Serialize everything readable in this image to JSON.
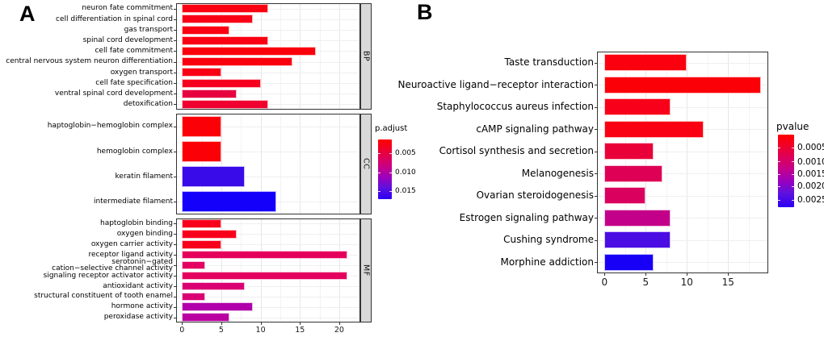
{
  "figure": {
    "panel_a_letter": "A",
    "panel_b_letter": "B"
  },
  "chart_data": [
    {
      "type": "bar",
      "orientation": "horizontal",
      "panel": "A",
      "fill_by": "p.adjust",
      "x_ticks": [
        0,
        5,
        10,
        15,
        20
      ],
      "xlim": [
        0,
        22.5
      ],
      "legend": {
        "title": "p.adjust",
        "tick_labels": [
          "0.005",
          "0.010",
          "0.015"
        ],
        "gradient_top": "#FF0000",
        "gradient_bottom": "#2B00F3"
      },
      "facets": [
        {
          "name": "BP",
          "rows": [
            {
              "label": "neuron fate commitment",
              "value": 11,
              "color": "#FA0010"
            },
            {
              "label": "cell differentiation in spinal cord",
              "value": 9,
              "color": "#F90017"
            },
            {
              "label": "gas transport",
              "value": 6,
              "color": "#FA0012"
            },
            {
              "label": "spinal cord development",
              "value": 11,
              "color": "#FA0012"
            },
            {
              "label": "cell fate commitment",
              "value": 17,
              "color": "#FB000C"
            },
            {
              "label": "central nervous system neuron differentiation",
              "value": 14,
              "color": "#FA000F"
            },
            {
              "label": "oxygen transport",
              "value": 5,
              "color": "#F90015"
            },
            {
              "label": "cell fate specification",
              "value": 10,
              "color": "#F7001F"
            },
            {
              "label": "ventral spinal cord development",
              "value": 7,
              "color": "#E60040"
            },
            {
              "label": "detoxification",
              "value": 11,
              "color": "#EF002E"
            }
          ]
        },
        {
          "name": "CC",
          "rows": [
            {
              "label": "haptoglobin−hemoglobin complex",
              "value": 5,
              "color": "#FC0007"
            },
            {
              "label": "hemoglobin complex",
              "value": 5,
              "color": "#FC0007"
            },
            {
              "label": "keratin filament",
              "value": 8,
              "color": "#3A0BE9"
            },
            {
              "label": "intermediate filament",
              "value": 12,
              "color": "#1400FA"
            }
          ]
        },
        {
          "name": "MF",
          "rows": [
            {
              "label": "haptoglobin binding",
              "value": 5,
              "color": "#F8001B"
            },
            {
              "label": "oxygen binding",
              "value": 7,
              "color": "#F8001B"
            },
            {
              "label": "oxygen carrier activity",
              "value": 5,
              "color": "#F8001B"
            },
            {
              "label": "receptor ligand activity",
              "value": 21,
              "color": "#E5005C"
            },
            {
              "label": "serotonin−gated cation−selective channel activity",
              "label_lines": [
                "serotonin−gated",
                "cation−selective channel activity"
              ],
              "value": 3,
              "color": "#E30062"
            },
            {
              "label": "signaling receptor activator activity",
              "value": 21,
              "color": "#E4005E"
            },
            {
              "label": "antioxidant activity",
              "value": 8,
              "color": "#DB0072"
            },
            {
              "label": "structural constituent of tooth enamel",
              "value": 3,
              "color": "#DA0074"
            },
            {
              "label": "hormone activity",
              "value": 9,
              "color": "#B100AB"
            },
            {
              "label": "peroxidase activity",
              "value": 6,
              "color": "#BA00A0"
            }
          ]
        }
      ]
    },
    {
      "type": "bar",
      "orientation": "horizontal",
      "panel": "B",
      "fill_by": "pvalue",
      "x_ticks": [
        0,
        5,
        10,
        15
      ],
      "xlim": [
        0,
        20
      ],
      "legend": {
        "title": "pvalue",
        "tick_labels": [
          "0.0005",
          "0.0010",
          "0.0015",
          "0.0020",
          "0.0025"
        ],
        "gradient_top": "#FF0000",
        "gradient_bottom": "#2B00F3"
      },
      "categories": [
        "Taste transduction",
        "Neuroactive ligand−receptor interaction",
        "Staphylococcus aureus infection",
        "cAMP signaling pathway",
        "Cortisol synthesis and secretion",
        "Melanogenesis",
        "Ovarian steroidogenesis",
        "Estrogen signaling pathway",
        "Cushing syndrome",
        "Morphine addiction"
      ],
      "values": [
        10,
        19,
        8,
        12,
        6,
        7,
        5,
        8,
        8,
        6
      ],
      "colors": [
        "#FB000E",
        "#FC0008",
        "#F80019",
        "#FA0013",
        "#EA0038",
        "#DE0054",
        "#D9005E",
        "#C30089",
        "#4A0DE4",
        "#1800F6"
      ]
    }
  ]
}
